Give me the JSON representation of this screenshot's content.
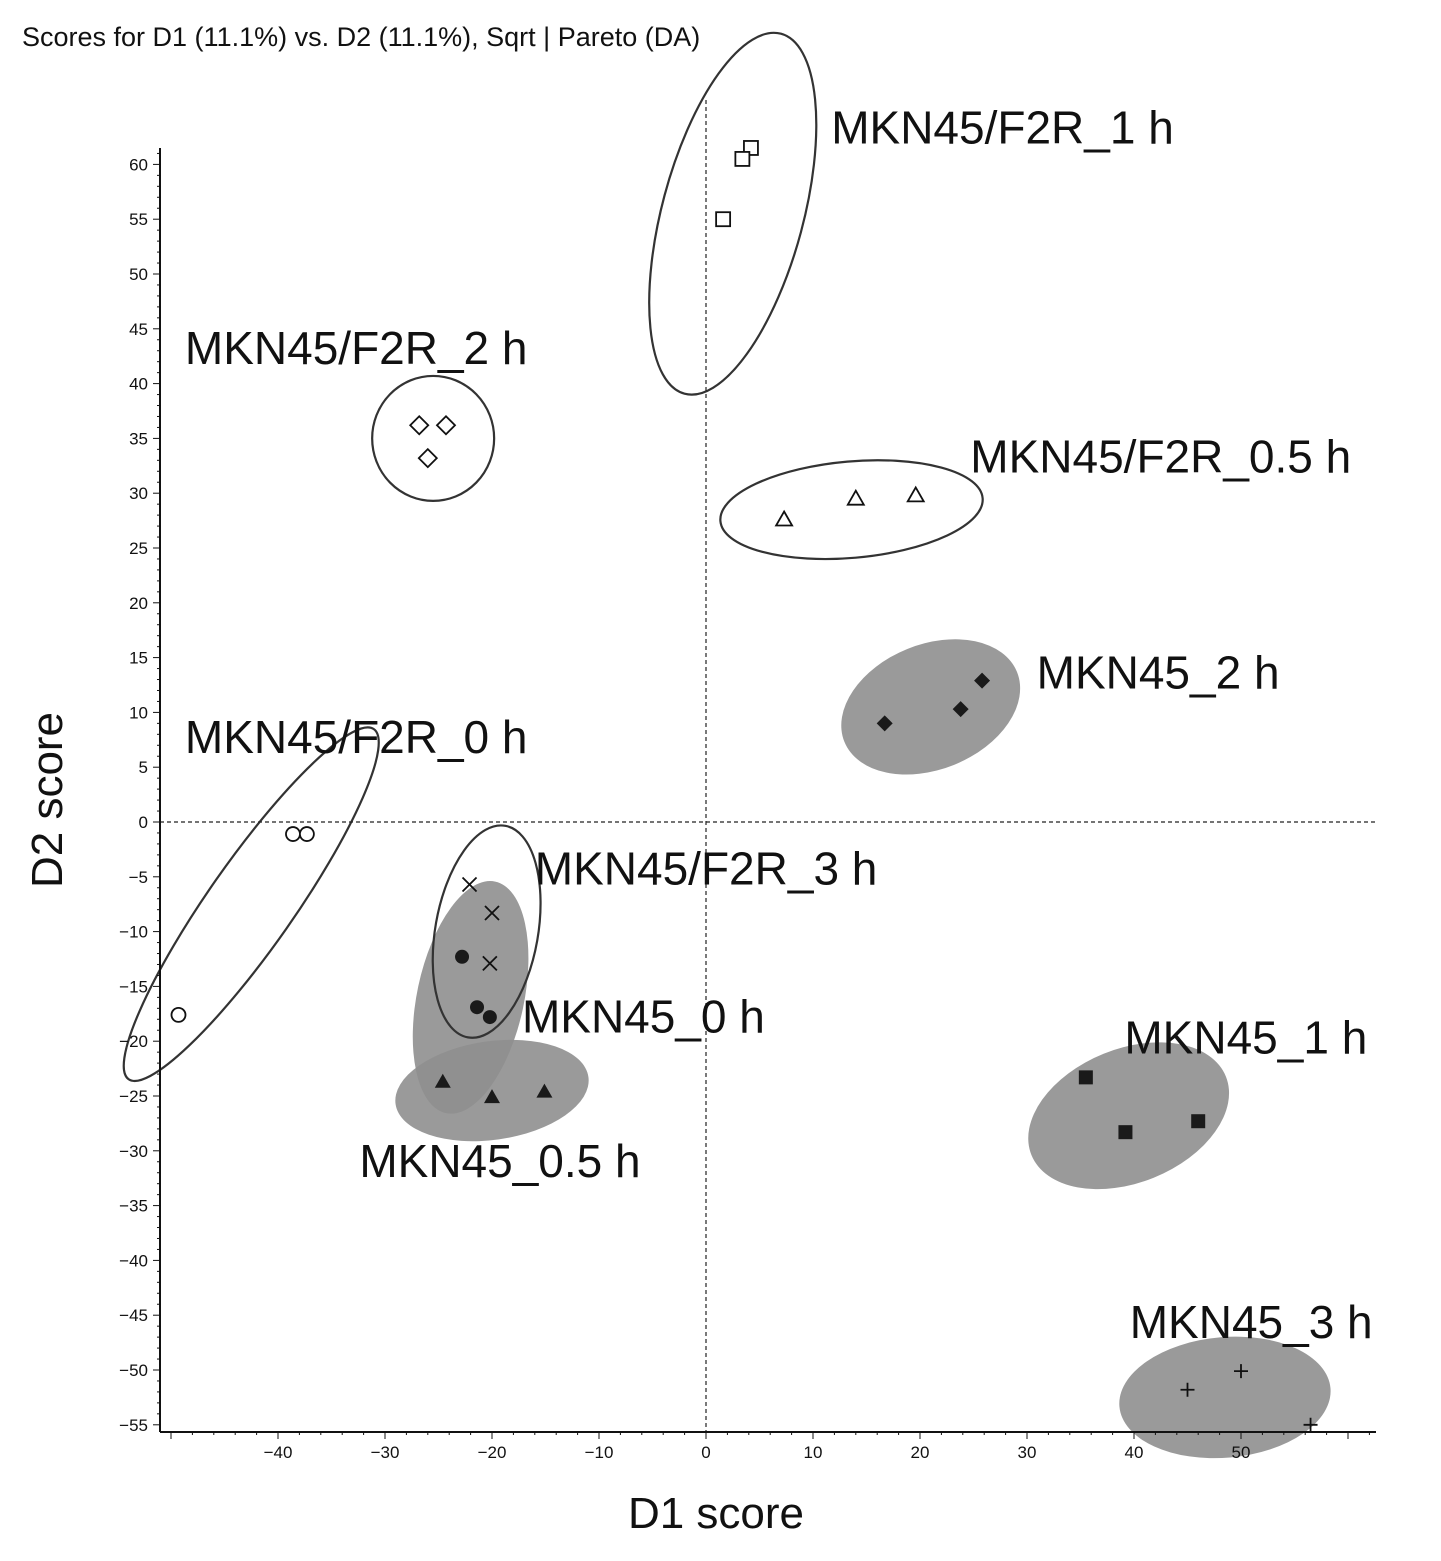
{
  "chart_data": {
    "type": "scatter",
    "title": "Scores for D1 (11.1%) vs. D2 (11.1%), Sqrt | Pareto (DA)",
    "xlabel": "D1 score",
    "ylabel": "D2 score",
    "xlim": [
      -51,
      62
    ],
    "ylim": [
      -56,
      62
    ],
    "x_ticks": [
      -40,
      -30,
      -20,
      -10,
      0,
      10,
      20,
      30,
      40,
      50
    ],
    "y_ticks": [
      60,
      55,
      50,
      45,
      40,
      35,
      30,
      25,
      20,
      15,
      10,
      5,
      0,
      -5,
      -10,
      -15,
      -20,
      -25,
      -30,
      -35,
      -40,
      -45,
      -50,
      -55
    ],
    "grid": false,
    "reference_lines": {
      "x": 0,
      "y": 0
    },
    "series": [
      {
        "name": "MKN45/F2R_1 h",
        "marker": "square-open",
        "x": [
          4.2,
          3.4,
          1.6
        ],
        "y": [
          61.5,
          60.5,
          55.0
        ],
        "ellipse": {
          "cx": 2.5,
          "cy": 55.5,
          "rx": 6.6,
          "ry": 17.0,
          "angle_deg": 15,
          "filled": false
        }
      },
      {
        "name": "MKN45/F2R_2 h",
        "marker": "diamond-open",
        "x": [
          -26.8,
          -24.3,
          -26.0
        ],
        "y": [
          36.2,
          36.2,
          33.2
        ],
        "ellipse": {
          "cx": -25.5,
          "cy": 35.0,
          "rx": 5.7,
          "ry": 5.7,
          "angle_deg": 0,
          "filled": false
        }
      },
      {
        "name": "MKN45/F2R_0.5 h",
        "marker": "triangle-open",
        "x": [
          7.3,
          14.0,
          19.6
        ],
        "y": [
          27.6,
          29.5,
          29.8
        ],
        "ellipse": {
          "cx": 13.6,
          "cy": 28.5,
          "rx": 12.3,
          "ry": 4.4,
          "angle_deg": -5,
          "filled": false
        }
      },
      {
        "name": "MKN45_2 h",
        "marker": "diamond-filled",
        "x": [
          16.7,
          23.8,
          25.8
        ],
        "y": [
          9.0,
          10.3,
          12.9
        ],
        "ellipse": {
          "cx": 21.0,
          "cy": 10.5,
          "rx": 8.7,
          "ry": 5.7,
          "angle_deg": -22,
          "filled": true
        }
      },
      {
        "name": "MKN45/F2R_0 h",
        "marker": "circle-open",
        "x": [
          -38.6,
          -37.3,
          -49.3
        ],
        "y": [
          -1.1,
          -1.1,
          -17.6
        ],
        "ellipse": {
          "cx": -42.5,
          "cy": -7.5,
          "rx": 4.0,
          "ry": 19.5,
          "angle_deg": 35,
          "filled": false
        }
      },
      {
        "name": "MKN45/F2R_3 h",
        "marker": "cross-x",
        "x": [
          -22.1,
          -20.0,
          -20.2
        ],
        "y": [
          -5.7,
          -8.3,
          -12.9
        ],
        "ellipse": {
          "cx": -20.5,
          "cy": -10.0,
          "rx": 4.8,
          "ry": 9.8,
          "angle_deg": 10,
          "filled": false
        }
      },
      {
        "name": "MKN45_0 h",
        "marker": "circle-filled",
        "x": [
          -22.8,
          -21.4,
          -20.2
        ],
        "y": [
          -12.3,
          -16.9,
          -17.8
        ],
        "ellipse": {
          "cx": -22.0,
          "cy": -16.0,
          "rx": 5.0,
          "ry": 10.8,
          "angle_deg": 12,
          "filled": true
        }
      },
      {
        "name": "MKN45_0.5 h",
        "marker": "triangle-filled",
        "x": [
          -24.6,
          -20.0,
          -15.1
        ],
        "y": [
          -23.7,
          -25.1,
          -24.6
        ],
        "ellipse": {
          "cx": -20.0,
          "cy": -24.5,
          "rx": 9.1,
          "ry": 4.5,
          "angle_deg": -8,
          "filled": true
        }
      },
      {
        "name": "MKN45_1 h",
        "marker": "square-filled",
        "x": [
          35.5,
          39.2,
          46.0
        ],
        "y": [
          -23.3,
          -28.3,
          -27.3
        ],
        "ellipse": {
          "cx": 39.5,
          "cy": -26.8,
          "rx": 9.8,
          "ry": 6.1,
          "angle_deg": -22,
          "filled": true
        }
      },
      {
        "name": "MKN45_3 h",
        "marker": "plus",
        "x": [
          50.0,
          45.0,
          56.5
        ],
        "y": [
          -50.1,
          -51.8,
          -55.0
        ],
        "ellipse": {
          "cx": 48.5,
          "cy": -52.5,
          "rx": 9.9,
          "ry": 5.5,
          "angle_deg": -5,
          "filled": true
        }
      }
    ],
    "annotations": [
      {
        "text": "MKN45/F2R_1 h",
        "x": 11.7,
        "y": 61.9
      },
      {
        "text": "MKN45/F2R_2 h",
        "x": -48.7,
        "y": 41.8
      },
      {
        "text": "MKN45/F2R_0.5 h",
        "x": 24.7,
        "y": 31.9
      },
      {
        "text": "MKN45_2 h",
        "x": 30.9,
        "y": 12.2
      },
      {
        "text": "MKN45/F2R_0 h",
        "x": -48.7,
        "y": 6.3
      },
      {
        "text": "MKN45/F2R_3 h",
        "x": -16.0,
        "y": -5.7
      },
      {
        "text": "MKN45_0 h",
        "x": -17.2,
        "y": -19.2
      },
      {
        "text": "MKN45_0.5 h",
        "x": -32.4,
        "y": -32.4
      },
      {
        "text": "MKN45_1 h",
        "x": 39.1,
        "y": -21.1
      },
      {
        "text": "MKN45_3 h",
        "x": 39.6,
        "y": -47.1
      }
    ]
  }
}
